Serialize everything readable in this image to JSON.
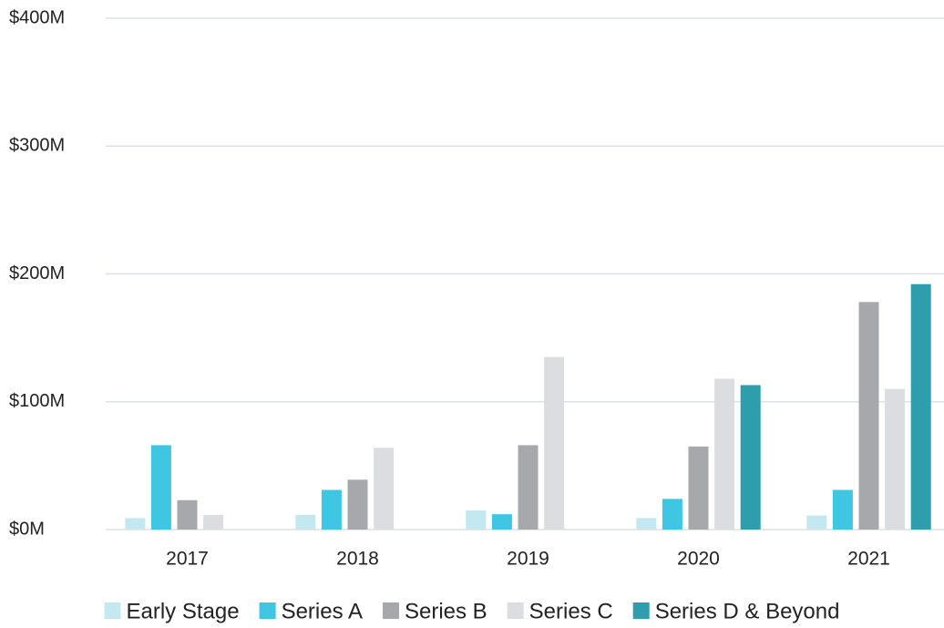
{
  "chart_data": {
    "type": "bar",
    "categories": [
      "2017",
      "2018",
      "2019",
      "2020",
      "2021"
    ],
    "series": [
      {
        "name": "Early Stage",
        "color": "#c4e8ef",
        "values": [
          9,
          11.5,
          15,
          9,
          11
        ]
      },
      {
        "name": "Series A",
        "color": "#3ec6e3",
        "values": [
          66,
          31,
          12,
          24,
          31
        ]
      },
      {
        "name": "Series B",
        "color": "#a6a8ab",
        "values": [
          23,
          39,
          66,
          65,
          178
        ]
      },
      {
        "name": "Series C",
        "color": "#dcdde0",
        "values": [
          11.5,
          64,
          135,
          118,
          110
        ]
      },
      {
        "name": "Series D & Beyond",
        "color": "#2f9eac",
        "values": [
          null,
          null,
          null,
          113,
          192
        ]
      }
    ],
    "ylim": [
      0,
      400
    ],
    "yticks": [
      {
        "value": 0,
        "label": "$0M"
      },
      {
        "value": 100,
        "label": "$100M"
      },
      {
        "value": 200,
        "label": "$200M"
      },
      {
        "value": 300,
        "label": "$300M"
      },
      {
        "value": 400,
        "label": "$400M"
      }
    ],
    "grid": true,
    "legend": "bottom"
  }
}
